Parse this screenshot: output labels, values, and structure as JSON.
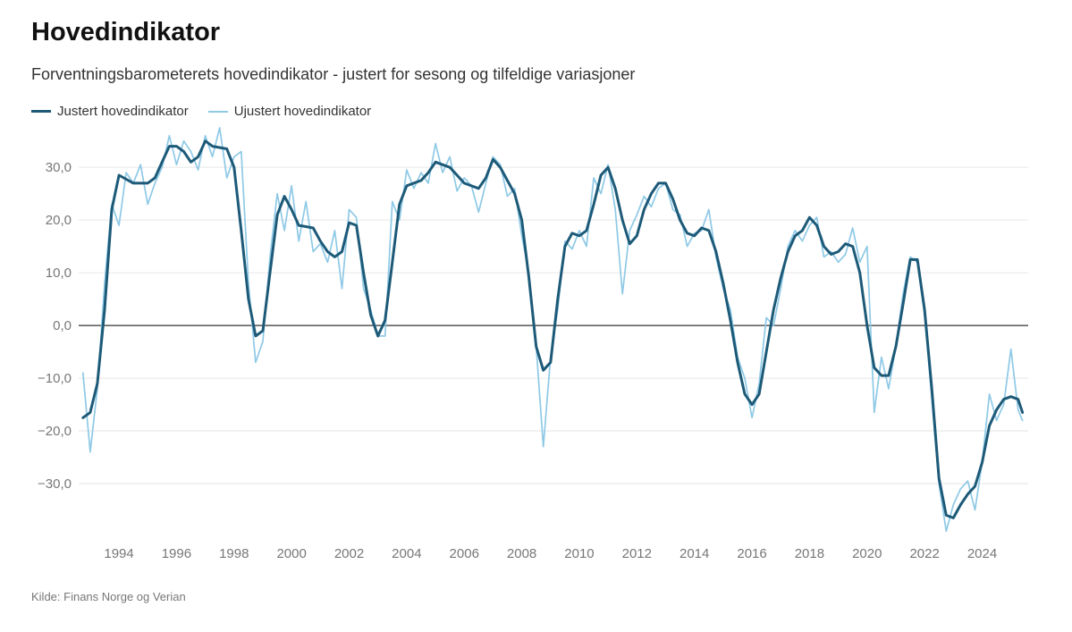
{
  "chart_data": {
    "type": "line",
    "title": "Hovedindikator",
    "subtitle": "Forventningsbarometerets hovedindikator - justert for sesong og tilfeldige variasjoner",
    "source": "Kilde: Finans Norge og Verian",
    "legend_position": "top-left",
    "grid": true,
    "xlim": [
      1992.6,
      2025.6
    ],
    "ylim": [
      -40,
      38
    ],
    "x_ticks": [
      1994,
      1996,
      1998,
      2000,
      2002,
      2004,
      2006,
      2008,
      2010,
      2012,
      2014,
      2016,
      2018,
      2020,
      2022,
      2024
    ],
    "x_tick_labels": [
      "1994",
      "1996",
      "1998",
      "2000",
      "2002",
      "2004",
      "2006",
      "2008",
      "2010",
      "2012",
      "2014",
      "2016",
      "2018",
      "2020",
      "2022",
      "2024"
    ],
    "y_ticks": [
      -30,
      -20,
      -10,
      0,
      10,
      20,
      30
    ],
    "y_tick_labels": [
      "−30,0",
      "−20,0",
      "−10,0",
      "0,0",
      "10,0",
      "20,0",
      "30,0"
    ],
    "series": [
      {
        "name": "Justert hovedindikator",
        "color": "#1d5a78",
        "points": [
          [
            1992.75,
            -17.5
          ],
          [
            1993.0,
            -16.5
          ],
          [
            1993.25,
            -11
          ],
          [
            1993.5,
            3
          ],
          [
            1993.75,
            22
          ],
          [
            1994.0,
            28.5
          ],
          [
            1994.5,
            27
          ],
          [
            1995.0,
            27
          ],
          [
            1995.25,
            28
          ],
          [
            1995.5,
            31
          ],
          [
            1995.75,
            34
          ],
          [
            1996.0,
            34
          ],
          [
            1996.25,
            33
          ],
          [
            1996.5,
            31
          ],
          [
            1996.75,
            32
          ],
          [
            1997.0,
            35
          ],
          [
            1997.25,
            34
          ],
          [
            1997.75,
            33.5
          ],
          [
            1998.0,
            30
          ],
          [
            1998.25,
            18
          ],
          [
            1998.5,
            5
          ],
          [
            1998.75,
            -2
          ],
          [
            1999.0,
            -1
          ],
          [
            1999.25,
            10
          ],
          [
            1999.5,
            21
          ],
          [
            1999.75,
            24.5
          ],
          [
            2000.0,
            22
          ],
          [
            2000.25,
            19
          ],
          [
            2000.75,
            18.5
          ],
          [
            2001.0,
            16
          ],
          [
            2001.25,
            14
          ],
          [
            2001.5,
            13
          ],
          [
            2001.75,
            14
          ],
          [
            2002.0,
            19.5
          ],
          [
            2002.25,
            19
          ],
          [
            2002.5,
            10
          ],
          [
            2002.75,
            2
          ],
          [
            2003.0,
            -2
          ],
          [
            2003.25,
            1
          ],
          [
            2003.5,
            12
          ],
          [
            2003.75,
            23
          ],
          [
            2004.0,
            26.5
          ],
          [
            2004.5,
            27.5
          ],
          [
            2004.75,
            29
          ],
          [
            2005.0,
            31
          ],
          [
            2005.5,
            30
          ],
          [
            2005.75,
            28.5
          ],
          [
            2006.0,
            27
          ],
          [
            2006.5,
            26
          ],
          [
            2006.75,
            28
          ],
          [
            2007.0,
            31.5
          ],
          [
            2007.25,
            30
          ],
          [
            2007.5,
            27.5
          ],
          [
            2007.75,
            25
          ],
          [
            2008.0,
            20
          ],
          [
            2008.25,
            9
          ],
          [
            2008.5,
            -4
          ],
          [
            2008.75,
            -8.5
          ],
          [
            2009.0,
            -7
          ],
          [
            2009.25,
            5
          ],
          [
            2009.5,
            15
          ],
          [
            2009.75,
            17.5
          ],
          [
            2010.0,
            17
          ],
          [
            2010.25,
            18
          ],
          [
            2010.5,
            23
          ],
          [
            2010.75,
            28.5
          ],
          [
            2011.0,
            30
          ],
          [
            2011.25,
            26
          ],
          [
            2011.5,
            20
          ],
          [
            2011.75,
            15.5
          ],
          [
            2012.0,
            17
          ],
          [
            2012.25,
            22
          ],
          [
            2012.5,
            25
          ],
          [
            2012.75,
            27
          ],
          [
            2013.0,
            27
          ],
          [
            2013.25,
            24
          ],
          [
            2013.5,
            20
          ],
          [
            2013.75,
            17.5
          ],
          [
            2014.0,
            17
          ],
          [
            2014.25,
            18.5
          ],
          [
            2014.5,
            18
          ],
          [
            2014.75,
            14
          ],
          [
            2015.0,
            8
          ],
          [
            2015.25,
            1
          ],
          [
            2015.5,
            -7
          ],
          [
            2015.75,
            -13
          ],
          [
            2016.0,
            -15
          ],
          [
            2016.25,
            -13
          ],
          [
            2016.5,
            -5
          ],
          [
            2016.75,
            3
          ],
          [
            2017.0,
            9
          ],
          [
            2017.25,
            14
          ],
          [
            2017.5,
            17
          ],
          [
            2017.75,
            18
          ],
          [
            2018.0,
            20.5
          ],
          [
            2018.25,
            19
          ],
          [
            2018.5,
            15
          ],
          [
            2018.75,
            13.5
          ],
          [
            2019.0,
            14
          ],
          [
            2019.25,
            15.5
          ],
          [
            2019.5,
            15
          ],
          [
            2019.75,
            10
          ],
          [
            2020.0,
            0
          ],
          [
            2020.25,
            -8
          ],
          [
            2020.5,
            -9.5
          ],
          [
            2020.75,
            -9.5
          ],
          [
            2021.0,
            -4
          ],
          [
            2021.25,
            4
          ],
          [
            2021.5,
            12.5
          ],
          [
            2021.75,
            12.5
          ],
          [
            2022.0,
            3
          ],
          [
            2022.25,
            -12
          ],
          [
            2022.5,
            -29
          ],
          [
            2022.75,
            -36
          ],
          [
            2023.0,
            -36.5
          ],
          [
            2023.25,
            -34
          ],
          [
            2023.5,
            -32
          ],
          [
            2023.75,
            -30.5
          ],
          [
            2024.0,
            -26
          ],
          [
            2024.25,
            -19
          ],
          [
            2024.5,
            -16
          ],
          [
            2024.75,
            -14
          ],
          [
            2025.0,
            -13.5
          ],
          [
            2025.25,
            -14
          ],
          [
            2025.4,
            -16.5
          ]
        ]
      },
      {
        "name": "Ujustert hovedindikator",
        "color": "#8ec9e6",
        "points": [
          [
            1992.75,
            -9
          ],
          [
            1993.0,
            -24
          ],
          [
            1993.25,
            -12
          ],
          [
            1993.5,
            8
          ],
          [
            1993.75,
            23
          ],
          [
            1994.0,
            19
          ],
          [
            1994.25,
            29
          ],
          [
            1994.5,
            27
          ],
          [
            1994.75,
            30.5
          ],
          [
            1995.0,
            23
          ],
          [
            1995.25,
            27
          ],
          [
            1995.5,
            30
          ],
          [
            1995.75,
            36
          ],
          [
            1996.0,
            30.5
          ],
          [
            1996.25,
            35
          ],
          [
            1996.5,
            33
          ],
          [
            1996.75,
            29.5
          ],
          [
            1997.0,
            36
          ],
          [
            1997.25,
            32
          ],
          [
            1997.5,
            37.5
          ],
          [
            1997.75,
            28
          ],
          [
            1998.0,
            32
          ],
          [
            1998.25,
            33
          ],
          [
            1998.5,
            8
          ],
          [
            1998.75,
            -7
          ],
          [
            1999.0,
            -3
          ],
          [
            1999.25,
            13
          ],
          [
            1999.5,
            25
          ],
          [
            1999.75,
            18
          ],
          [
            2000.0,
            26.5
          ],
          [
            2000.25,
            16
          ],
          [
            2000.5,
            23.5
          ],
          [
            2000.75,
            14
          ],
          [
            2001.0,
            15.5
          ],
          [
            2001.25,
            12
          ],
          [
            2001.5,
            18
          ],
          [
            2001.75,
            7
          ],
          [
            2002.0,
            22
          ],
          [
            2002.25,
            20.5
          ],
          [
            2002.5,
            7
          ],
          [
            2002.75,
            3
          ],
          [
            2003.0,
            -2
          ],
          [
            2003.25,
            -2
          ],
          [
            2003.5,
            23.5
          ],
          [
            2003.75,
            20
          ],
          [
            2004.0,
            29.5
          ],
          [
            2004.25,
            26
          ],
          [
            2004.5,
            29
          ],
          [
            2004.75,
            27
          ],
          [
            2005.0,
            34.5
          ],
          [
            2005.25,
            29
          ],
          [
            2005.5,
            32
          ],
          [
            2005.75,
            25.5
          ],
          [
            2006.0,
            28
          ],
          [
            2006.25,
            26.5
          ],
          [
            2006.5,
            21.5
          ],
          [
            2006.75,
            27
          ],
          [
            2007.0,
            32
          ],
          [
            2007.25,
            30.5
          ],
          [
            2007.5,
            24.5
          ],
          [
            2007.75,
            26
          ],
          [
            2008.0,
            17
          ],
          [
            2008.25,
            10
          ],
          [
            2008.5,
            -4
          ],
          [
            2008.75,
            -23
          ],
          [
            2009.0,
            -6
          ],
          [
            2009.25,
            3
          ],
          [
            2009.5,
            16
          ],
          [
            2009.75,
            14.5
          ],
          [
            2010.0,
            18
          ],
          [
            2010.25,
            15
          ],
          [
            2010.5,
            28
          ],
          [
            2010.75,
            25
          ],
          [
            2011.0,
            30.5
          ],
          [
            2011.25,
            22
          ],
          [
            2011.5,
            6
          ],
          [
            2011.75,
            18
          ],
          [
            2012.0,
            21
          ],
          [
            2012.25,
            24.5
          ],
          [
            2012.5,
            22.5
          ],
          [
            2012.75,
            26
          ],
          [
            2013.0,
            27
          ],
          [
            2013.25,
            22
          ],
          [
            2013.5,
            21
          ],
          [
            2013.75,
            15
          ],
          [
            2014.0,
            17.5
          ],
          [
            2014.25,
            18
          ],
          [
            2014.5,
            22
          ],
          [
            2014.75,
            13
          ],
          [
            2015.0,
            7
          ],
          [
            2015.25,
            3
          ],
          [
            2015.5,
            -6
          ],
          [
            2015.75,
            -10
          ],
          [
            2016.0,
            -17.5
          ],
          [
            2016.25,
            -11
          ],
          [
            2016.5,
            1.5
          ],
          [
            2016.75,
            0
          ],
          [
            2017.0,
            7
          ],
          [
            2017.25,
            15
          ],
          [
            2017.5,
            18
          ],
          [
            2017.75,
            16
          ],
          [
            2018.0,
            19
          ],
          [
            2018.25,
            20.5
          ],
          [
            2018.5,
            13
          ],
          [
            2018.75,
            14
          ],
          [
            2019.0,
            12
          ],
          [
            2019.25,
            13.5
          ],
          [
            2019.5,
            18.5
          ],
          [
            2019.75,
            12
          ],
          [
            2020.0,
            15
          ],
          [
            2020.25,
            -16.5
          ],
          [
            2020.5,
            -6
          ],
          [
            2020.75,
            -12
          ],
          [
            2021.0,
            -4
          ],
          [
            2021.25,
            6
          ],
          [
            2021.5,
            13
          ],
          [
            2021.75,
            12
          ],
          [
            2022.0,
            2
          ],
          [
            2022.25,
            -14
          ],
          [
            2022.5,
            -30
          ],
          [
            2022.75,
            -39
          ],
          [
            2023.0,
            -34
          ],
          [
            2023.25,
            -31
          ],
          [
            2023.5,
            -29.5
          ],
          [
            2023.75,
            -35
          ],
          [
            2024.0,
            -26
          ],
          [
            2024.25,
            -13
          ],
          [
            2024.5,
            -18
          ],
          [
            2024.75,
            -15
          ],
          [
            2025.0,
            -4.5
          ],
          [
            2025.25,
            -16
          ],
          [
            2025.4,
            -18
          ]
        ]
      }
    ]
  }
}
